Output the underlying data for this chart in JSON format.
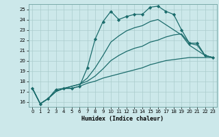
{
  "title": "",
  "xlabel": "Humidex (Indice chaleur)",
  "bg_color": "#cce8ea",
  "grid_color": "#aacccc",
  "line_color": "#1a6b6b",
  "xlim": [
    -0.5,
    23.5
  ],
  "ylim": [
    15.5,
    25.5
  ],
  "yticks": [
    16,
    17,
    18,
    19,
    20,
    21,
    22,
    23,
    24,
    25
  ],
  "xticks": [
    0,
    1,
    2,
    3,
    4,
    5,
    6,
    7,
    8,
    9,
    10,
    11,
    12,
    13,
    14,
    15,
    16,
    17,
    18,
    19,
    20,
    21,
    22,
    23
  ],
  "line1_x": [
    0,
    1,
    2,
    3,
    4,
    5,
    6,
    7,
    8,
    9,
    10,
    11,
    12,
    13,
    14,
    15,
    16,
    17,
    18,
    19,
    20,
    21,
    22,
    23
  ],
  "line1_y": [
    17.3,
    15.8,
    16.3,
    17.2,
    17.3,
    17.3,
    17.5,
    19.3,
    22.1,
    23.8,
    24.8,
    24.0,
    24.3,
    24.5,
    24.5,
    25.2,
    25.3,
    24.8,
    24.5,
    23.0,
    21.7,
    21.7,
    20.5,
    20.3
  ],
  "line2_x": [
    0,
    1,
    2,
    3,
    4,
    5,
    6,
    7,
    8,
    9,
    10,
    11,
    12,
    13,
    14,
    15,
    16,
    17,
    18,
    19,
    20,
    21,
    22,
    23
  ],
  "line2_y": [
    17.3,
    15.8,
    16.3,
    17.0,
    17.3,
    17.3,
    17.5,
    17.8,
    18.0,
    18.3,
    18.5,
    18.7,
    18.9,
    19.1,
    19.3,
    19.6,
    19.8,
    20.0,
    20.1,
    20.2,
    20.3,
    20.3,
    20.3,
    20.3
  ],
  "line3_x": [
    0,
    1,
    2,
    3,
    4,
    5,
    6,
    7,
    8,
    9,
    10,
    11,
    12,
    13,
    14,
    15,
    16,
    17,
    18,
    19,
    20,
    21,
    22,
    23
  ],
  "line3_y": [
    17.3,
    15.8,
    16.3,
    17.0,
    17.3,
    17.5,
    17.7,
    18.0,
    18.5,
    19.2,
    20.0,
    20.5,
    20.9,
    21.2,
    21.4,
    21.8,
    22.0,
    22.3,
    22.5,
    22.6,
    21.7,
    21.5,
    20.5,
    20.3
  ],
  "line4_x": [
    0,
    1,
    2,
    3,
    4,
    5,
    6,
    7,
    8,
    9,
    10,
    11,
    12,
    13,
    14,
    15,
    16,
    17,
    18,
    19,
    20,
    21,
    22,
    23
  ],
  "line4_y": [
    17.3,
    15.8,
    16.3,
    17.0,
    17.3,
    17.5,
    17.7,
    18.3,
    19.3,
    20.5,
    21.8,
    22.4,
    22.9,
    23.2,
    23.4,
    23.8,
    24.0,
    23.5,
    23.0,
    22.5,
    21.5,
    21.0,
    20.5,
    20.3
  ]
}
